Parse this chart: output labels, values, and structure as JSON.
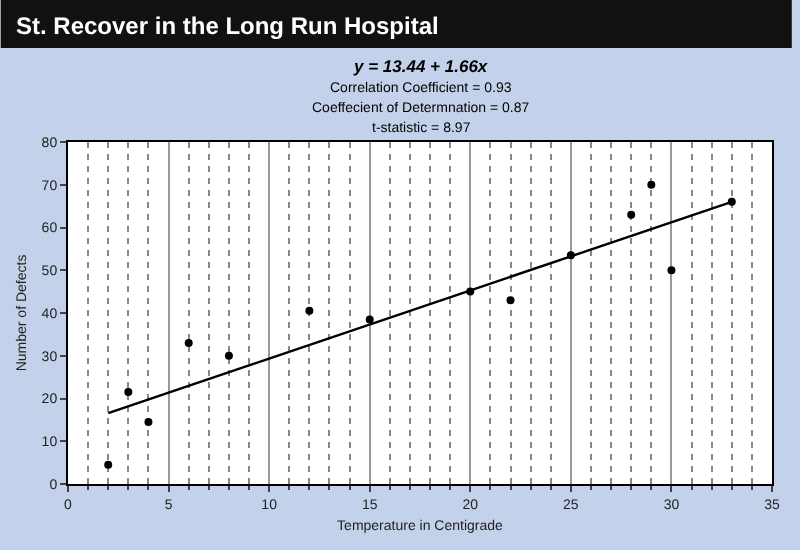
{
  "chart_data": {
    "type": "scatter",
    "title": "St. Recover in the Long Run Hospital",
    "subtitle": "y = 13.44 + 1.66x",
    "annotations": [
      "Correlation Coefficient = 0.93",
      "Coeffecient of Determnation = 0.87",
      "t-statistic = 8.97"
    ],
    "xlabel": "Temperature in Centigrade",
    "ylabel": "Number of Defects",
    "x": [
      2,
      3,
      4,
      6,
      8,
      12,
      15,
      20,
      22,
      25,
      28,
      29,
      30,
      33
    ],
    "series": [
      {
        "color": "#000000",
        "marker": "circle",
        "values": [
          4.5,
          21.5,
          14.5,
          33,
          30,
          40.5,
          38.5,
          45,
          43,
          53.5,
          63,
          70,
          50,
          66
        ]
      },
      {
        "type": "line",
        "color": "#000000",
        "marker": "none",
        "line_style": "solid",
        "x": [
          2,
          33
        ],
        "values": [
          16.6,
          66
        ]
      }
    ],
    "xlim": [
      0,
      35
    ],
    "xticks": [
      0,
      5,
      10,
      15,
      20,
      25,
      30,
      35
    ],
    "ylim": [
      0,
      80
    ],
    "yticks": [
      0,
      10,
      20,
      30,
      40,
      50,
      60,
      70,
      80
    ],
    "grid": "x"
  }
}
